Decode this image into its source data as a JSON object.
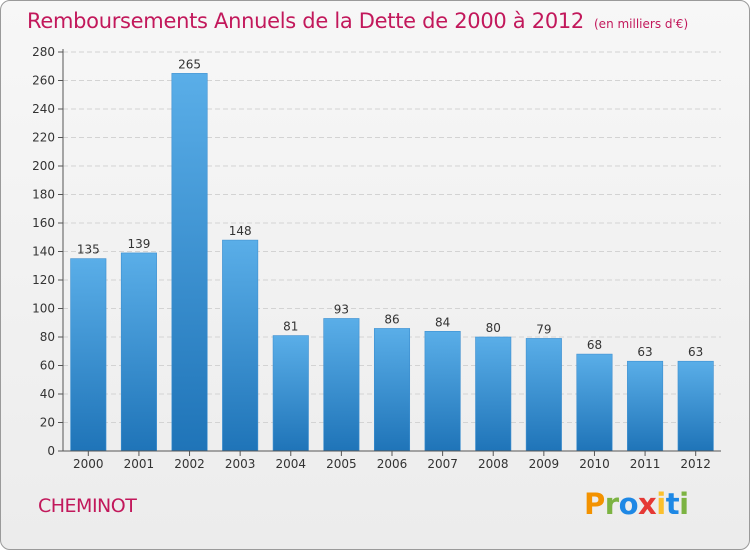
{
  "header": {
    "title": "Remboursements Annuels de la Dette de 2000 à 2012",
    "unit": "(en milliers d'€)"
  },
  "footer": {
    "commune": "CHEMINOT",
    "logo": "Proxiti",
    "logo_letters": [
      "P",
      "r",
      "o",
      "x",
      "i",
      "t",
      "i"
    ]
  },
  "colors": {
    "title": "#c2185b",
    "bar_top": "#5aaee8",
    "bar_bottom": "#1f74b8"
  },
  "chart_data": {
    "type": "bar",
    "title": "Remboursements Annuels de la Dette de 2000 à 2012",
    "xlabel": "",
    "ylabel": "",
    "categories": [
      "2000",
      "2001",
      "2002",
      "2003",
      "2004",
      "2005",
      "2006",
      "2007",
      "2008",
      "2009",
      "2010",
      "2011",
      "2012"
    ],
    "values": [
      135,
      139,
      265,
      148,
      81,
      93,
      86,
      84,
      80,
      79,
      68,
      63,
      63
    ],
    "ylim": [
      0,
      280
    ],
    "yticks": [
      0,
      20,
      40,
      60,
      80,
      100,
      120,
      140,
      160,
      180,
      200,
      220,
      240,
      260,
      280
    ],
    "grid": true,
    "legend": "none"
  }
}
